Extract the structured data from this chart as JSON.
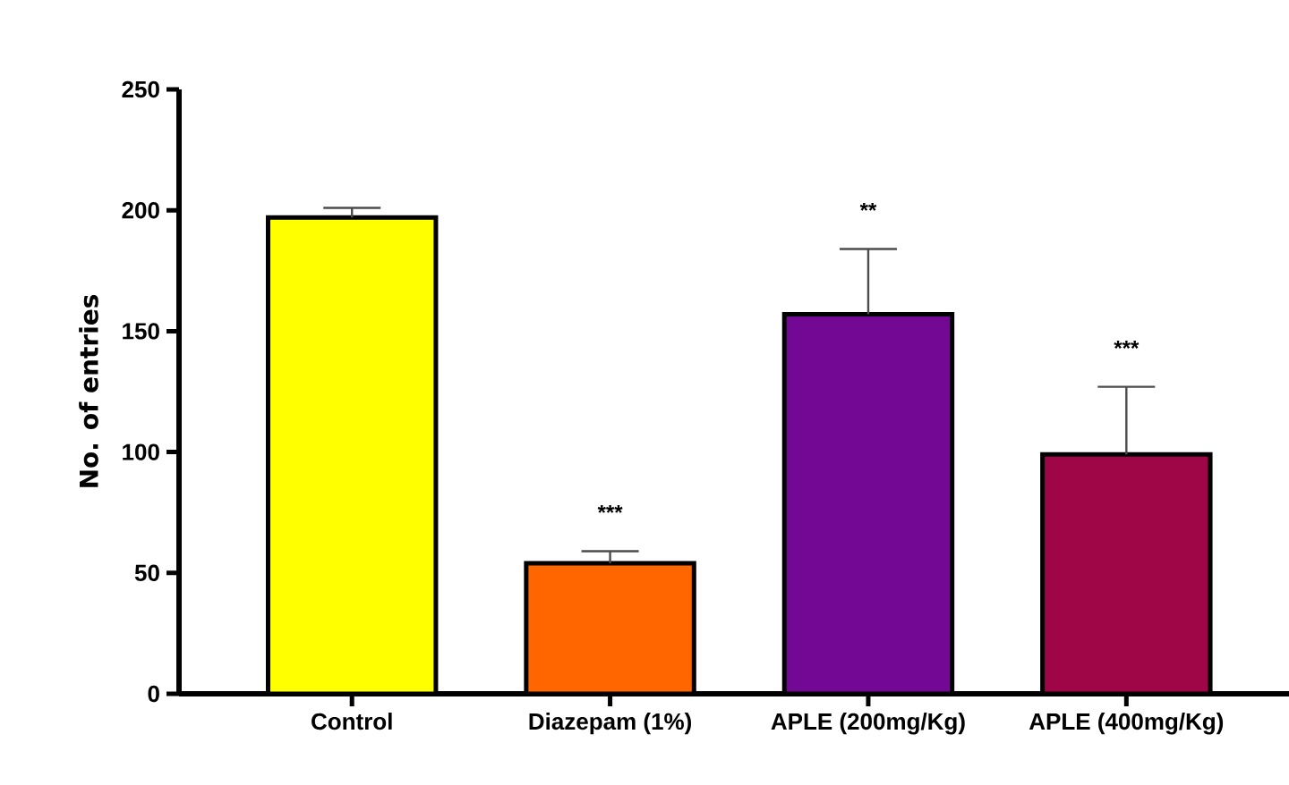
{
  "chart_data": {
    "type": "bar",
    "ylabel": "No. of entries",
    "categories": [
      "Control",
      "Diazepam (1%)",
      "APLE (200mg/Kg)",
      "APLE (400mg/Kg)"
    ],
    "values": [
      197,
      54,
      157,
      99
    ],
    "errors": [
      4,
      5,
      27,
      28
    ],
    "colors": [
      "#ffff00",
      "#ff6600",
      "#730894",
      "#9e0647"
    ],
    "ylim": [
      0,
      250
    ],
    "yticks": [
      0,
      50,
      100,
      150,
      200,
      250
    ],
    "annotations": [
      "***",
      "**",
      "***"
    ]
  }
}
